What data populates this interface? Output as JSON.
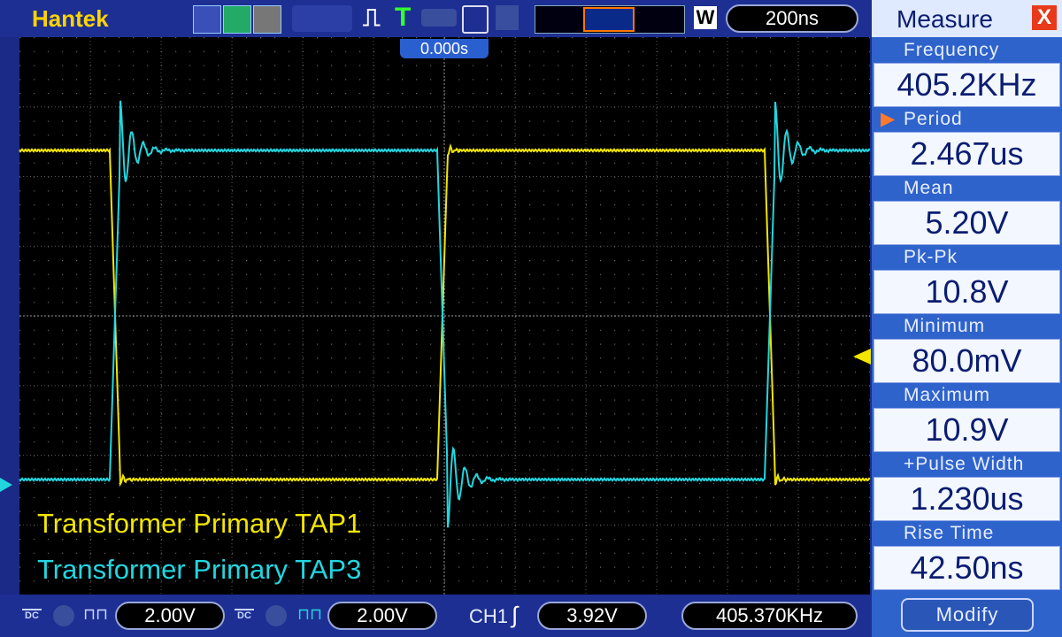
{
  "toolbar": {
    "brand": "Hantek",
    "trigger_icon": "T",
    "memory_marker": "W",
    "timebase": "200ns"
  },
  "screen": {
    "trigger_position": "0.000s",
    "labels": [
      "Transformer Primary TAP1",
      "Transformer Primary TAP3"
    ]
  },
  "measure": {
    "title": "Measure",
    "close": "X",
    "items": [
      {
        "name": "Frequency",
        "value": "405.2KHz"
      },
      {
        "name": "Period",
        "value": "2.467us"
      },
      {
        "name": "Mean",
        "value": "5.20V"
      },
      {
        "name": "Pk-Pk",
        "value": "10.8V"
      },
      {
        "name": "Minimum",
        "value": "80.0mV"
      },
      {
        "name": "Maximum",
        "value": "10.9V"
      },
      {
        "name": "+Pulse Width",
        "value": "1.230us"
      },
      {
        "name": "Rise Time",
        "value": "42.50ns"
      }
    ],
    "button": "Modify"
  },
  "status": {
    "ch1": {
      "coupling": "DC",
      "scale": "2.00V"
    },
    "ch2": {
      "coupling": "DC",
      "scale": "2.00V"
    },
    "trigger": {
      "source": "CH1",
      "level": "3.92V"
    },
    "frequency": "405.370KHz"
  }
}
